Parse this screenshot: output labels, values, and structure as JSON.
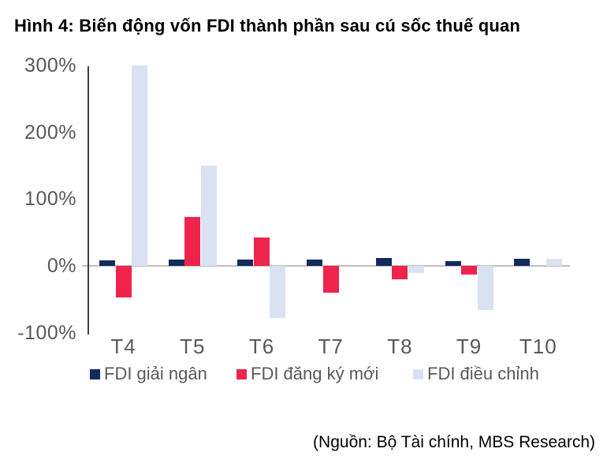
{
  "title": "Hình 4: Biến động vốn FDI thành phần sau cú sốc thuế quan",
  "source": "(Nguồn: Bộ Tài chính, MBS Research)",
  "colors": {
    "navy": "#122a5e",
    "red": "#ee244d",
    "light_blue": "#d9e1f2",
    "axis_line": "#404040",
    "zero_line": "#bfbfbf",
    "tick_label": "#595959",
    "title": "#000000"
  },
  "chart_data": {
    "type": "bar",
    "title": "Hình 4: Biến động vốn FDI thành phần sau cú sốc thuế quan",
    "categories": [
      "T4",
      "T5",
      "T6",
      "T7",
      "T8",
      "T9",
      "T10"
    ],
    "series": [
      {
        "name": "FDI giải ngân",
        "color": "#122a5e",
        "values": [
          8,
          9,
          9,
          10,
          12,
          7,
          11
        ]
      },
      {
        "name": "FDI đăng ký mới",
        "color": "#ee244d",
        "values": [
          -47,
          73,
          43,
          -40,
          -20,
          -13,
          0
        ]
      },
      {
        "name": "FDI điều chỉnh",
        "color": "#d9e1f2",
        "values": [
          300,
          150,
          -78,
          0,
          -11,
          -66,
          11
        ]
      }
    ],
    "unit": "%",
    "ylim": [
      -100,
      300
    ],
    "yticks": [
      {
        "value": 300,
        "label": "300%"
      },
      {
        "value": 200,
        "label": "200%"
      },
      {
        "value": 100,
        "label": "100%"
      },
      {
        "value": 0,
        "label": "0%"
      },
      {
        "value": -100,
        "label": "-100%"
      }
    ],
    "grid": false,
    "legend_position": "bottom",
    "xlabel": "",
    "ylabel": ""
  }
}
